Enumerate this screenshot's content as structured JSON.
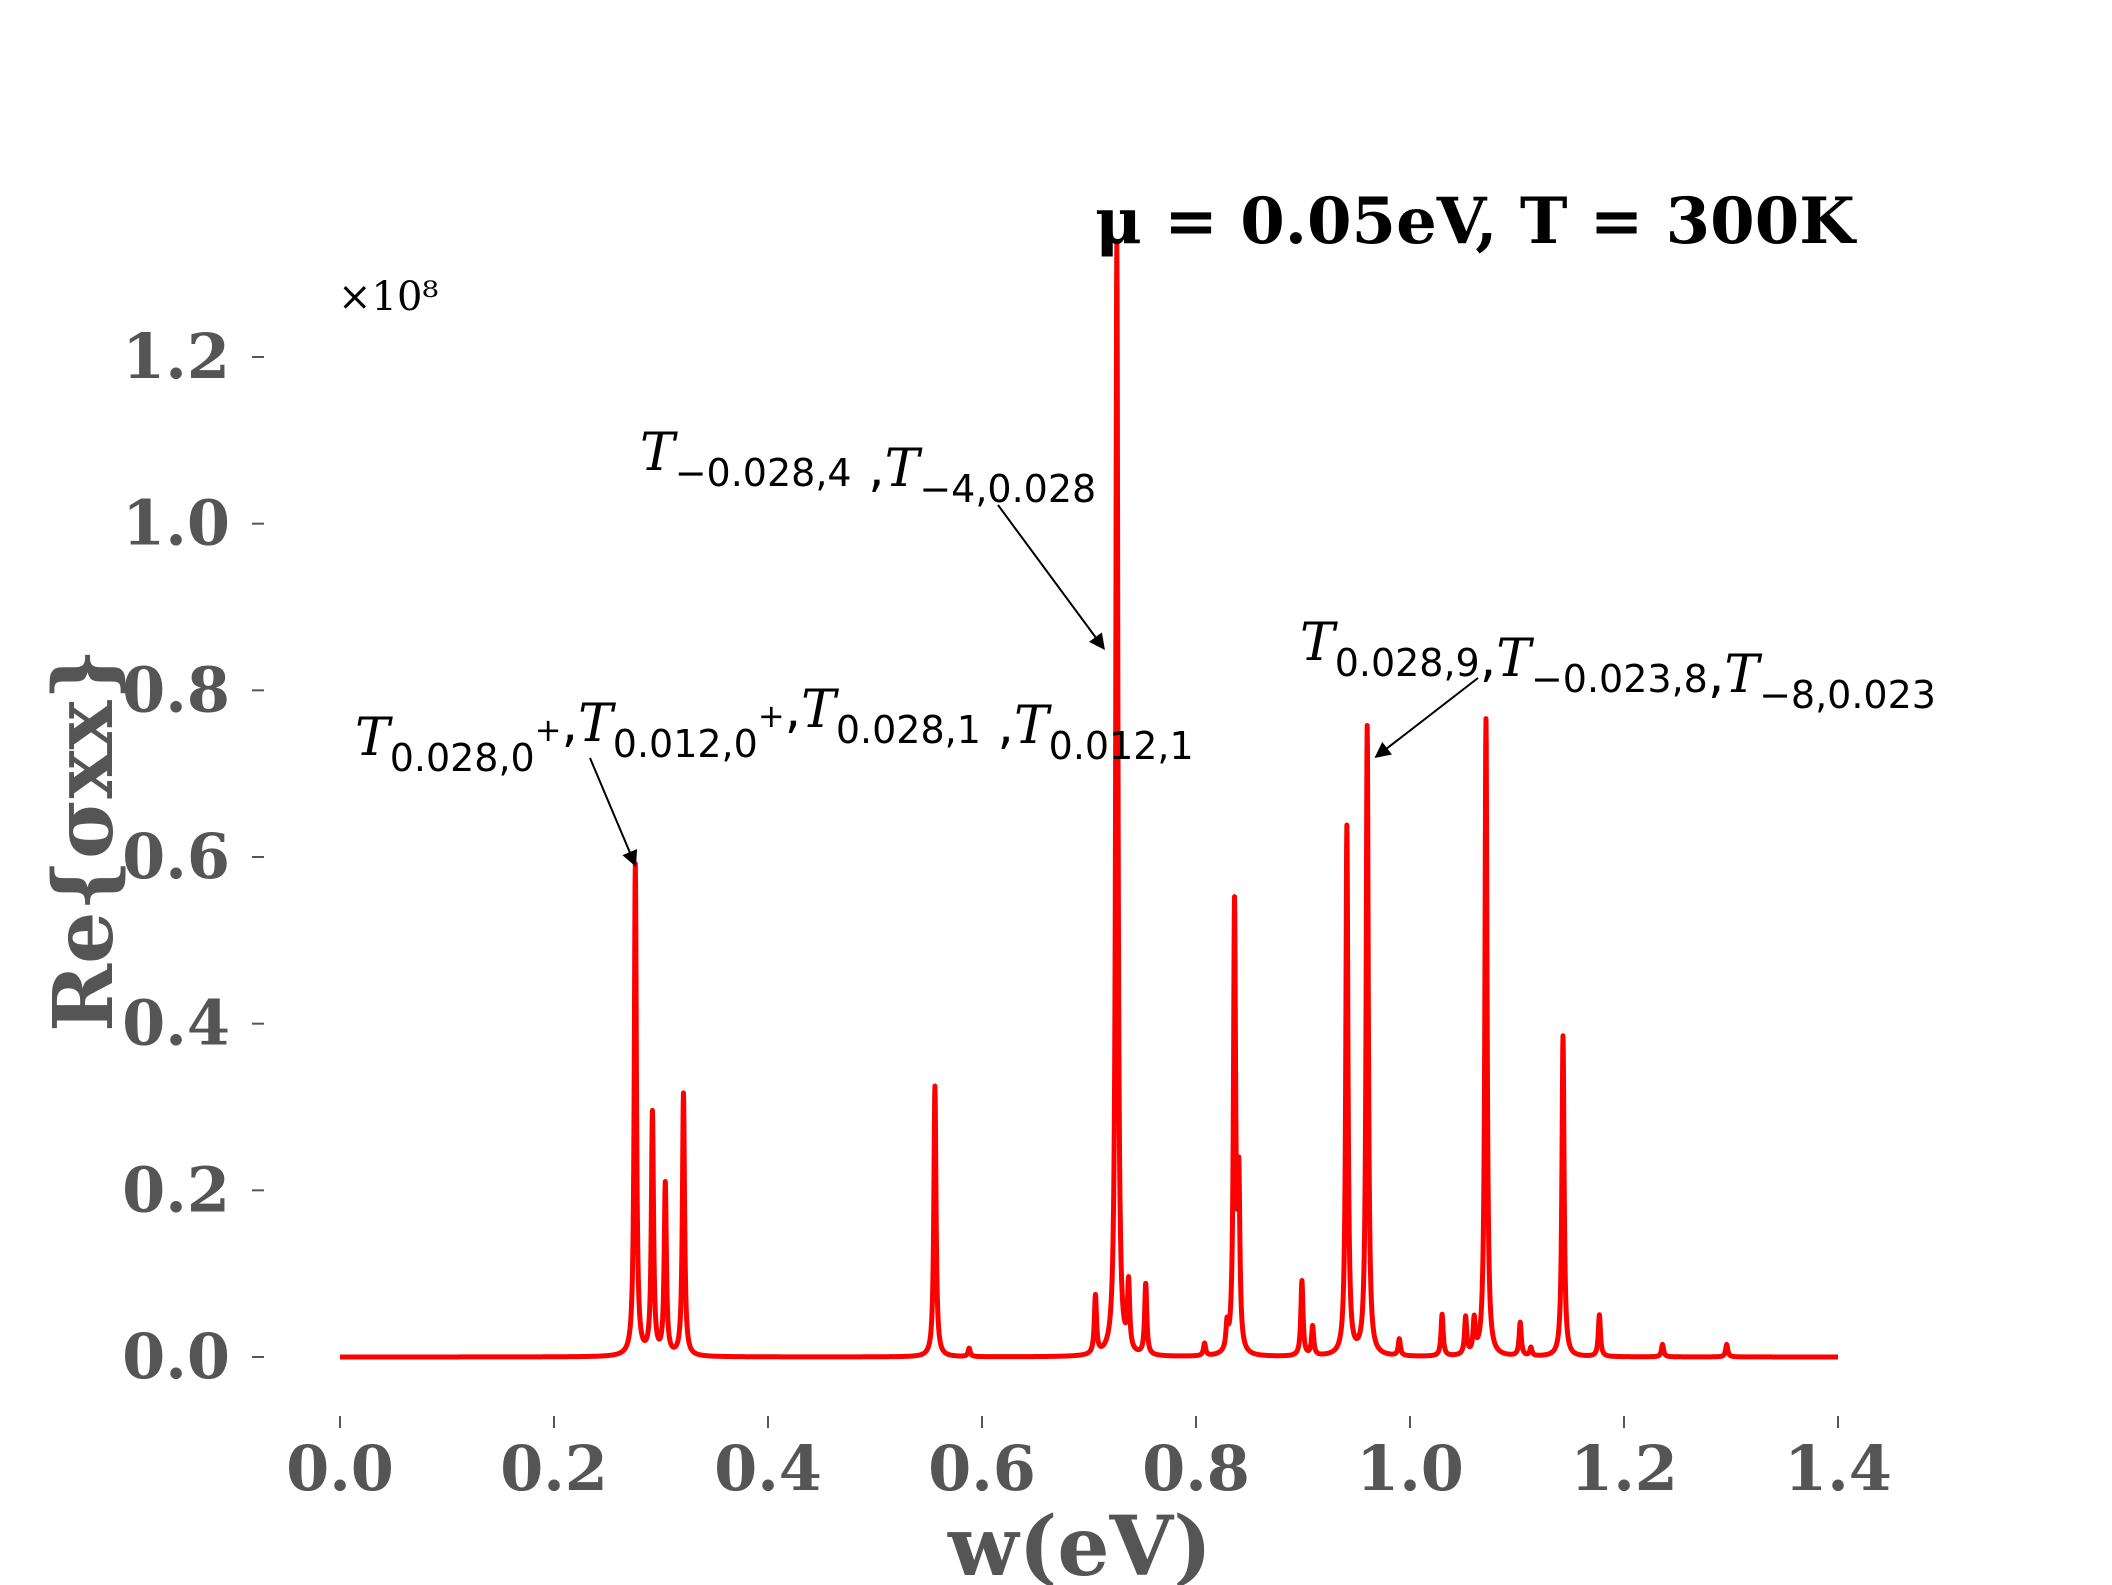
{
  "chart_data": {
    "type": "line",
    "title": "μ = 0.05eV, T = 300K",
    "xlabel": "w(eV)",
    "ylabel": "Re{σxx}",
    "y_multiplier": "×10⁸",
    "xlim": [
      0.0,
      1.4
    ],
    "ylim": [
      -0.05,
      1.4
    ],
    "xticks": [
      0.0,
      0.2,
      0.4,
      0.6,
      0.8,
      1.0,
      1.2,
      1.4
    ],
    "xtick_labels": [
      "0.0",
      "0.2",
      "0.4",
      "0.6",
      "0.8",
      "1.0",
      "1.2",
      "1.4"
    ],
    "yticks": [
      0.0,
      0.2,
      0.4,
      0.6,
      0.8,
      1.0,
      1.2
    ],
    "ytick_labels": [
      "0.0",
      "0.2",
      "0.4",
      "0.6",
      "0.8",
      "1.0",
      "1.2"
    ],
    "grid": false,
    "color": "#ff0000",
    "series": [
      {
        "peaks": [
          {
            "x": 0.276,
            "y": 0.59
          },
          {
            "x": 0.292,
            "y": 0.29
          },
          {
            "x": 0.304,
            "y": 0.205
          },
          {
            "x": 0.321,
            "y": 0.315
          },
          {
            "x": 0.556,
            "y": 0.325
          },
          {
            "x": 0.588,
            "y": 0.01
          },
          {
            "x": 0.706,
            "y": 0.07
          },
          {
            "x": 0.726,
            "y": 1.335
          },
          {
            "x": 0.737,
            "y": 0.08
          },
          {
            "x": 0.753,
            "y": 0.085
          },
          {
            "x": 0.808,
            "y": 0.015
          },
          {
            "x": 0.829,
            "y": 0.03
          },
          {
            "x": 0.836,
            "y": 0.535
          },
          {
            "x": 0.84,
            "y": 0.195
          },
          {
            "x": 0.899,
            "y": 0.09
          },
          {
            "x": 0.909,
            "y": 0.035
          },
          {
            "x": 0.941,
            "y": 0.635
          },
          {
            "x": 0.96,
            "y": 0.755
          },
          {
            "x": 0.99,
            "y": 0.02
          },
          {
            "x": 1.03,
            "y": 0.05
          },
          {
            "x": 1.052,
            "y": 0.045
          },
          {
            "x": 1.06,
            "y": 0.04
          },
          {
            "x": 1.071,
            "y": 0.765
          },
          {
            "x": 1.103,
            "y": 0.04
          },
          {
            "x": 1.113,
            "y": 0.01
          },
          {
            "x": 1.143,
            "y": 0.385
          },
          {
            "x": 1.177,
            "y": 0.05
          },
          {
            "x": 1.236,
            "y": 0.015
          },
          {
            "x": 1.296,
            "y": 0.015
          }
        ]
      }
    ],
    "annotations": [
      {
        "parts": [
          {
            "t": "T",
            "sub": "0.028,0",
            "sup": "+"
          },
          {
            "t": ","
          },
          {
            "t": "T",
            "sub": "0.012,0",
            "sup": "+"
          },
          {
            "t": ","
          },
          {
            "t": "T",
            "sub": "0.028,1"
          },
          {
            "t": " ,"
          },
          {
            "t": "T",
            "sub": "0.012,1"
          }
        ],
        "arrow_to": {
          "x": 0.276,
          "y": 0.59
        }
      },
      {
        "parts": [
          {
            "t": "T",
            "sub": "−0.028,4"
          },
          {
            "t": " ,"
          },
          {
            "t": "T",
            "sub": "−4,0.028"
          }
        ],
        "arrow_to": {
          "x": 0.714,
          "y": 0.85
        }
      },
      {
        "parts": [
          {
            "t": "T",
            "sub": "0.028,9"
          },
          {
            "t": ","
          },
          {
            "t": "T",
            "sub": "−0.023,8"
          },
          {
            "t": ","
          },
          {
            "t": "T",
            "sub": "−8,0.023"
          }
        ],
        "arrow_to": {
          "x": 0.968,
          "y": 0.72
        }
      }
    ]
  }
}
